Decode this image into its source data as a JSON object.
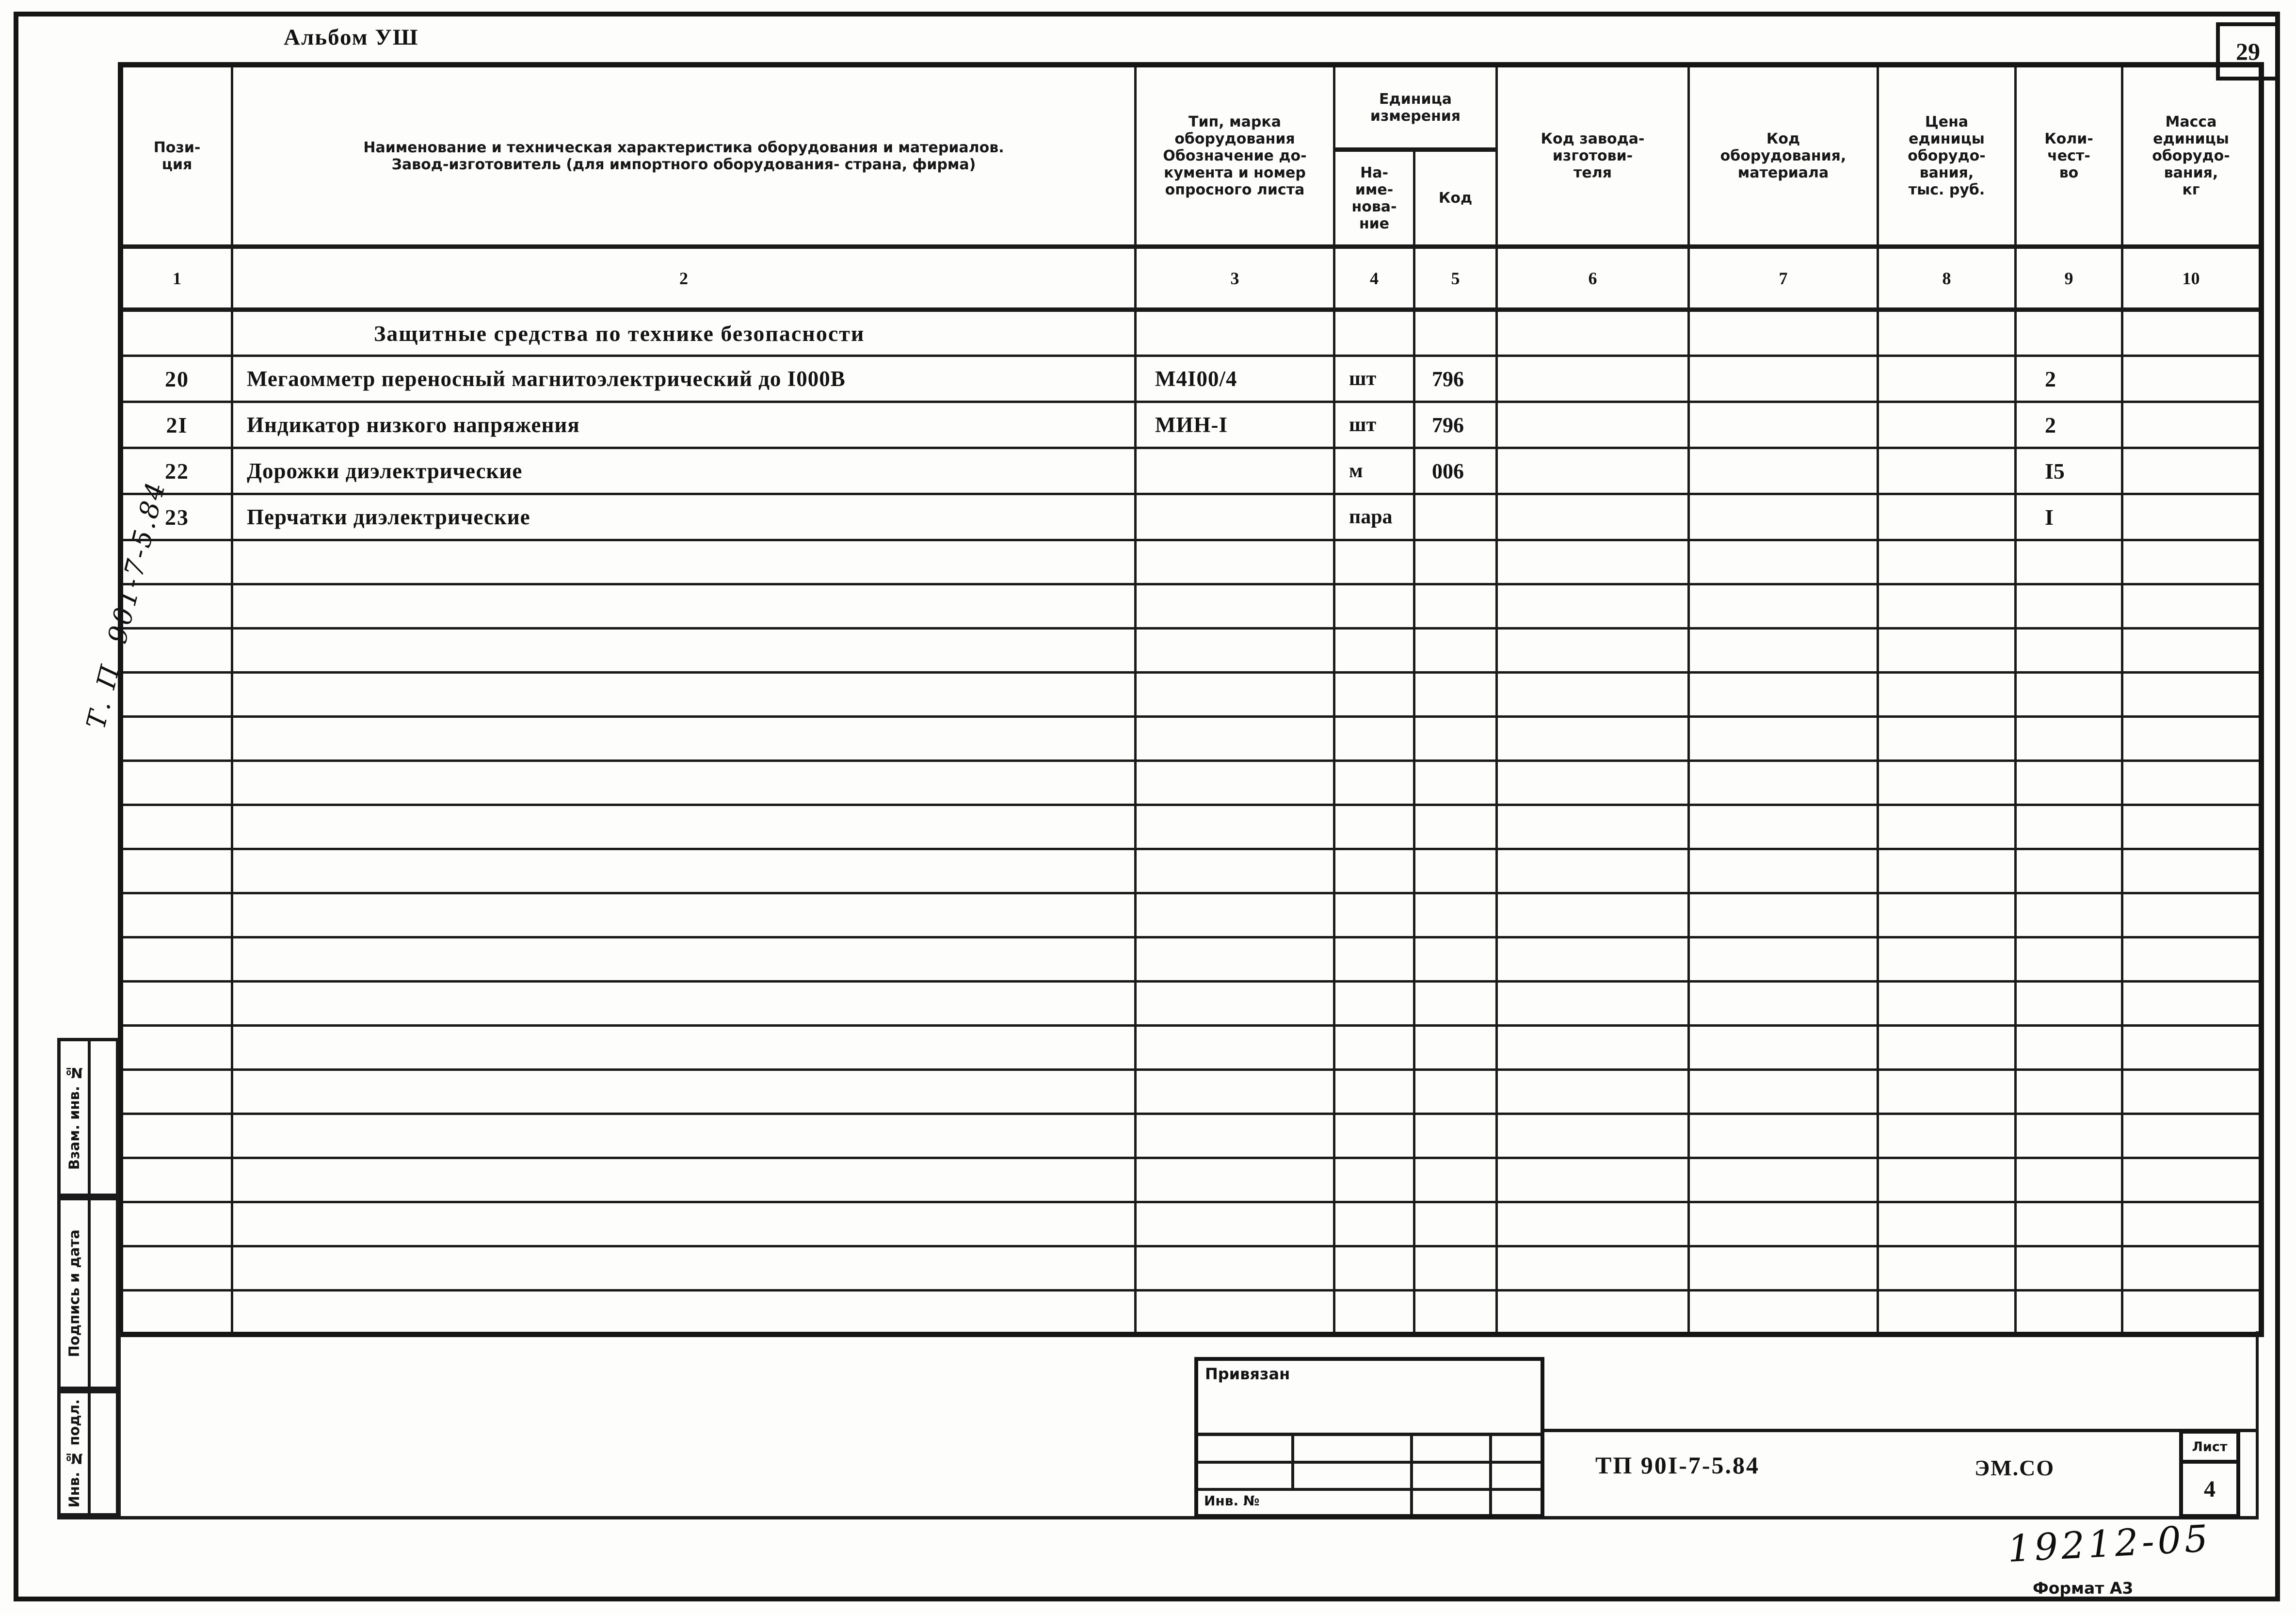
{
  "page": {
    "album_title": "Альбом УШ",
    "page_number": "29",
    "side_note": "Т. П. 901-7-5.84",
    "handwritten_number": "19212-05",
    "format_label": "Формат А3"
  },
  "margin": {
    "labels": [
      "Взам. инв. №",
      "Подпись и дата",
      "Инв. № подл."
    ]
  },
  "title_block": {
    "doc_code": "ТП 90I-7-5.84",
    "org_code": "ЭМ.СО",
    "sheet_label": "Лист",
    "sheet_number": "4",
    "stamp_label": "Привязан",
    "stamp_inv_label": "Инв. №"
  },
  "table": {
    "headers": {
      "position": "Пози-\nция",
      "name": "Наименование и техническая характеристика оборудования и материалов.\nЗавод-изготовитель (для импортного оборудования- страна, фирма)",
      "type": "Тип, марка\nоборудования\nОбозначение до-\nкумента и номер\nопросного листа",
      "unit_group": "Единица\nизмерения",
      "unit_name": "На-\nиме-\nнова-\nние",
      "unit_code": "Код",
      "factory_code": "Код завода-\nизготови-\nтеля",
      "equipment_code": "Код\nоборудования,\nматериала",
      "unit_price": "Цена\nединицы\nоборудо-\nвания,\nтыс. руб.",
      "quantity": "Коли-\nчест-\nво",
      "unit_mass": "Масса\nединицы\nоборудо-\nвания,\nкг"
    },
    "column_numbers": [
      "1",
      "2",
      "3",
      "4",
      "5",
      "6",
      "7",
      "8",
      "9",
      "10"
    ],
    "section_title": "Защитные средства по технике безопасности",
    "rows": [
      {
        "pos": "20",
        "name": "Мегаомметр переносный магнитоэлектрический до I000В",
        "type": "М4I00/4",
        "unit_name": "шт",
        "unit_code": "796",
        "factory_code": "",
        "equipment_code": "",
        "price": "",
        "qty": "2",
        "mass": ""
      },
      {
        "pos": "2I",
        "name": "Индикатор низкого напряжения",
        "type": "МИН-I",
        "unit_name": "шт",
        "unit_code": "796",
        "factory_code": "",
        "equipment_code": "",
        "price": "",
        "qty": "2",
        "mass": ""
      },
      {
        "pos": "22",
        "name": "Дорожки диэлектрические",
        "type": "",
        "unit_name": "м",
        "unit_code": "006",
        "factory_code": "",
        "equipment_code": "",
        "price": "",
        "qty": "I5",
        "mass": ""
      },
      {
        "pos": "23",
        "name": "Перчатки диэлектрические",
        "type": "",
        "unit_name": "пара",
        "unit_code": "",
        "factory_code": "",
        "equipment_code": "",
        "price": "",
        "qty": "I",
        "mass": ""
      }
    ],
    "empty_row_count": 18
  }
}
